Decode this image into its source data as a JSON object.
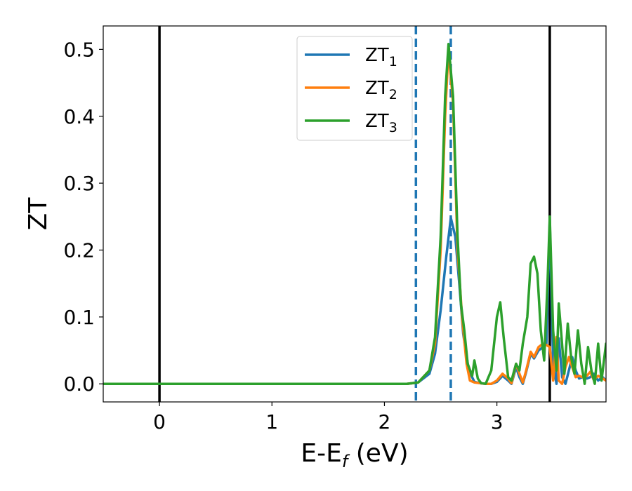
{
  "chart_data": {
    "type": "line",
    "xlabel_main": "E-E",
    "xlabel_sub": "f",
    "xlabel_tail": " (eV)",
    "ylabel": "ZT",
    "xlim": [
      -0.5,
      3.97
    ],
    "ylim": [
      -0.027,
      0.535
    ],
    "xticks": [
      0,
      1,
      2,
      3
    ],
    "yticks": [
      0.0,
      0.1,
      0.2,
      0.3,
      0.4,
      0.5
    ],
    "grid": false,
    "legend_position": "top-center",
    "vlines": [
      {
        "x": 0.0,
        "style": "solid",
        "color": "#000000"
      },
      {
        "x": 3.47,
        "style": "solid",
        "color": "#000000"
      },
      {
        "x": 2.28,
        "style": "dashed",
        "color": "#1f77b4"
      },
      {
        "x": 2.59,
        "style": "dashed",
        "color": "#1f77b4"
      }
    ],
    "series": [
      {
        "name": "ZT",
        "sub": "1",
        "color": "#1f77b4",
        "x": [
          -0.5,
          2.2,
          2.3,
          2.4,
          2.45,
          2.5,
          2.55,
          2.59,
          2.63,
          2.67,
          2.7,
          2.75,
          2.8,
          2.85,
          2.9,
          2.95,
          3.0,
          3.05,
          3.1,
          3.13,
          3.17,
          3.2,
          3.23,
          3.26,
          3.3,
          3.33,
          3.37,
          3.41,
          3.44,
          3.47,
          3.5,
          3.53,
          3.55,
          3.58,
          3.61,
          3.64,
          3.67,
          3.7,
          3.73,
          3.76,
          3.8,
          3.83,
          3.86,
          3.9,
          3.94,
          3.97
        ],
        "y": [
          0.0,
          0.0,
          0.002,
          0.015,
          0.045,
          0.11,
          0.19,
          0.248,
          0.22,
          0.14,
          0.075,
          0.02,
          0.003,
          0.001,
          0.0,
          0.0,
          0.003,
          0.012,
          0.005,
          0.0,
          0.025,
          0.01,
          0.0,
          0.018,
          0.045,
          0.038,
          0.05,
          0.055,
          0.06,
          0.245,
          0.03,
          0.0,
          0.068,
          0.01,
          0.0,
          0.02,
          0.04,
          0.02,
          0.008,
          0.01,
          0.008,
          0.01,
          0.015,
          0.005,
          0.01,
          0.005
        ]
      },
      {
        "name": "ZT",
        "sub": "2",
        "color": "#ff7f0e",
        "x": [
          -0.5,
          2.2,
          2.3,
          2.4,
          2.45,
          2.5,
          2.54,
          2.57,
          2.61,
          2.65,
          2.69,
          2.73,
          2.76,
          2.8,
          2.85,
          2.9,
          2.95,
          3.0,
          3.05,
          3.1,
          3.13,
          3.17,
          3.2,
          3.23,
          3.26,
          3.3,
          3.33,
          3.37,
          3.41,
          3.44,
          3.47,
          3.5,
          3.53,
          3.55,
          3.58,
          3.61,
          3.64,
          3.67,
          3.7,
          3.73,
          3.76,
          3.8,
          3.83,
          3.86,
          3.9,
          3.94,
          3.97
        ],
        "y": [
          0.0,
          0.0,
          0.002,
          0.02,
          0.06,
          0.2,
          0.4,
          0.5,
          0.42,
          0.2,
          0.1,
          0.03,
          0.005,
          0.002,
          0.001,
          0.0,
          0.0,
          0.005,
          0.015,
          0.008,
          0.001,
          0.03,
          0.015,
          0.002,
          0.02,
          0.048,
          0.04,
          0.055,
          0.06,
          0.058,
          0.055,
          0.005,
          0.07,
          0.005,
          0.0,
          0.025,
          0.04,
          0.025,
          0.01,
          0.012,
          0.01,
          0.012,
          0.018,
          0.006,
          0.012,
          0.008,
          0.005
        ]
      },
      {
        "name": "ZT",
        "sub": "3",
        "color": "#2ca02c",
        "x": [
          -0.5,
          2.2,
          2.3,
          2.4,
          2.45,
          2.5,
          2.54,
          2.57,
          2.61,
          2.65,
          2.68,
          2.71,
          2.74,
          2.78,
          2.8,
          2.83,
          2.86,
          2.9,
          2.95,
          3.0,
          3.03,
          3.06,
          3.1,
          3.13,
          3.17,
          3.2,
          3.23,
          3.27,
          3.3,
          3.33,
          3.36,
          3.39,
          3.42,
          3.45,
          3.47,
          3.5,
          3.53,
          3.55,
          3.57,
          3.6,
          3.63,
          3.66,
          3.69,
          3.72,
          3.75,
          3.78,
          3.81,
          3.84,
          3.87,
          3.9,
          3.93,
          3.97
        ],
        "y": [
          0.0,
          0.0,
          0.002,
          0.02,
          0.07,
          0.22,
          0.43,
          0.508,
          0.43,
          0.22,
          0.12,
          0.08,
          0.03,
          0.012,
          0.035,
          0.008,
          0.001,
          0.0,
          0.02,
          0.1,
          0.122,
          0.07,
          0.01,
          0.005,
          0.03,
          0.02,
          0.06,
          0.1,
          0.18,
          0.19,
          0.165,
          0.08,
          0.035,
          0.15,
          0.25,
          0.08,
          0.02,
          0.12,
          0.08,
          0.015,
          0.09,
          0.04,
          0.015,
          0.08,
          0.03,
          0.0,
          0.055,
          0.02,
          0.0,
          0.06,
          0.005,
          0.06
        ]
      }
    ]
  }
}
